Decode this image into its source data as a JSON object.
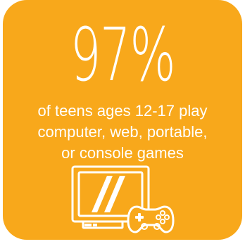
{
  "card": {
    "background": "#F8A81B",
    "foreground": "#FFFFFF"
  },
  "stat": {
    "value": "97%"
  },
  "description": {
    "lines": [
      "of teens ages 12-17 play",
      "computer, web, portable,",
      "or console games"
    ]
  },
  "icons": {
    "tv": "tv-icon",
    "controller": "game-controller-icon"
  }
}
